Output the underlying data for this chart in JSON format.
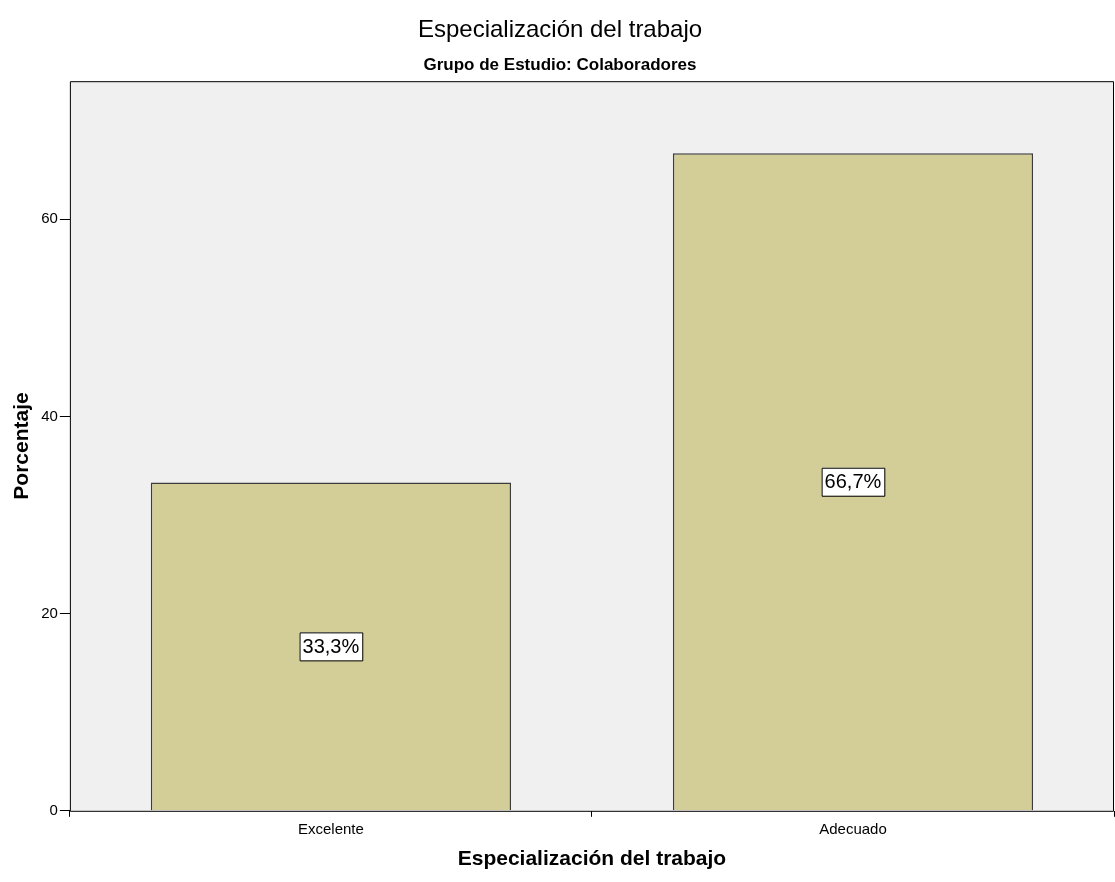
{
  "chart_data": {
    "type": "bar",
    "title": "Especialización del trabajo",
    "subtitle": "Grupo de Estudio: Colaboradores",
    "xlabel": "Especialización del trabajo",
    "ylabel": "Porcentaje",
    "categories": [
      "Excelente",
      "Adecuado"
    ],
    "values": [
      33.3,
      66.7
    ],
    "value_labels": [
      "33,3%",
      "66,7%"
    ],
    "color": "#d3ce98",
    "ylim": [
      0,
      74
    ],
    "yticks": [
      0,
      20,
      40,
      60
    ],
    "legend": false
  }
}
